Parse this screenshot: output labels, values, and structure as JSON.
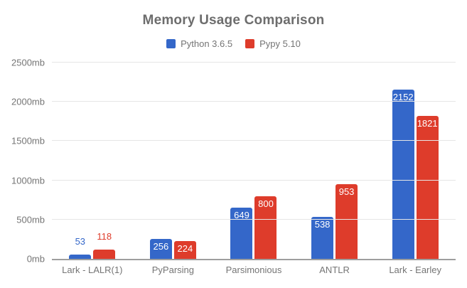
{
  "title": "Memory Usage Comparison",
  "legend": [
    {
      "label": "Python 3.6.5",
      "color": "#3467c9"
    },
    {
      "label": "Pypy 5.10",
      "color": "#de3c2b"
    }
  ],
  "chart_data": {
    "type": "bar",
    "title": "Memory Usage Comparison",
    "categories": [
      "Lark - LALR(1)",
      "PyParsing",
      "Parsimonious",
      "ANTLR",
      "Lark - Earley"
    ],
    "series": [
      {
        "name": "Python 3.6.5",
        "color": "#3467c9",
        "values": [
          53,
          256,
          649,
          538,
          2152
        ]
      },
      {
        "name": "Pypy 5.10",
        "color": "#de3c2b",
        "values": [
          118,
          224,
          800,
          953,
          1821
        ]
      }
    ],
    "ytick_suffix": "mb",
    "yticks": [
      0,
      500,
      1000,
      1500,
      2000,
      2500
    ],
    "ylim": [
      0,
      2500
    ],
    "grid": true,
    "legend_position": "top",
    "annotations": "value labels shown on each bar; white inside bar when bar is tall enough, series-colored above bar otherwise"
  },
  "colors": {
    "background": "#ffffff",
    "title_text": "#6d6d6d",
    "axis_text": "#757575",
    "gridline": "#e6e6e6",
    "axis_line": "#9e9e9e",
    "inside_value_text": "#ffffff"
  }
}
